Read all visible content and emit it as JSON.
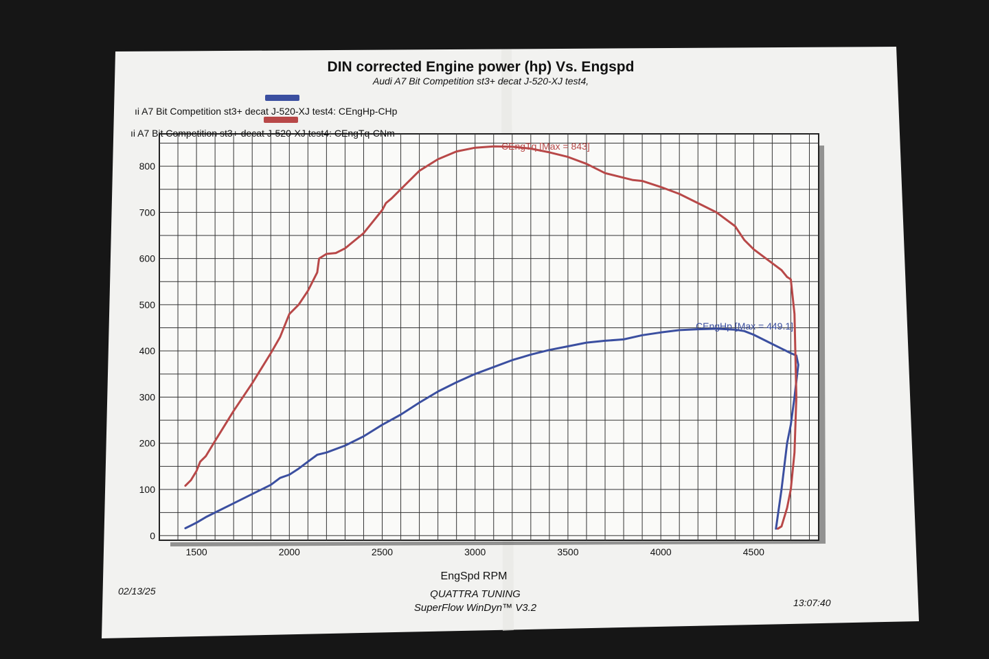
{
  "colors": {
    "hp": "#3b4fa0",
    "tq": "#b84848",
    "paper": "#f3f3f1",
    "background": "#161616"
  },
  "chart_data": {
    "type": "line",
    "title": "DIN corrected Engine power (hp) Vs. Engspd",
    "subtitle": "Audi A7 Bit Competition st3+ decat J-520-XJ test4,",
    "xlabel": "EngSpd RPM",
    "ylabel": "",
    "xlim": [
      1300,
      4850
    ],
    "ylim": [
      -10,
      870
    ],
    "x_ticks": [
      1500,
      2000,
      2500,
      3000,
      3500,
      4000,
      4500
    ],
    "y_ticks": [
      0,
      100,
      200,
      300,
      400,
      500,
      600,
      700,
      800
    ],
    "grid": true,
    "legend_position": "top-left",
    "series": [
      {
        "name": "ıi A7 Bit Competition st3+ decat J-520-XJ test4: CEngHp-CHp",
        "color_key": "hp",
        "annotation": "CEngHp [Max = 449.1]",
        "x": [
          1440,
          1470,
          1500,
          1550,
          1600,
          1700,
          1800,
          1900,
          1950,
          2000,
          2050,
          2100,
          2150,
          2200,
          2300,
          2400,
          2500,
          2600,
          2700,
          2800,
          2900,
          3000,
          3100,
          3200,
          3300,
          3400,
          3500,
          3600,
          3700,
          3800,
          3900,
          4000,
          4100,
          4200,
          4300,
          4400,
          4450,
          4500,
          4550,
          4600,
          4650,
          4700,
          4730,
          4740,
          4720,
          4700,
          4680,
          4650,
          4620
        ],
        "y": [
          16,
          22,
          28,
          40,
          50,
          70,
          90,
          110,
          125,
          132,
          145,
          160,
          175,
          180,
          195,
          215,
          240,
          262,
          288,
          312,
          332,
          350,
          365,
          380,
          392,
          402,
          410,
          418,
          422,
          425,
          434,
          440,
          445,
          447,
          448,
          446,
          443,
          435,
          425,
          415,
          405,
          395,
          390,
          370,
          300,
          240,
          200,
          100,
          15
        ]
      },
      {
        "name": "ıi A7 Bit Competition st3+ decat J-520-XJ test4: CEngTq-CNm",
        "color_key": "tq",
        "annotation": "CEngTq [Max = 843]",
        "x": [
          1440,
          1470,
          1500,
          1520,
          1550,
          1600,
          1700,
          1800,
          1900,
          1950,
          1980,
          2000,
          2050,
          2100,
          2150,
          2160,
          2200,
          2250,
          2300,
          2400,
          2450,
          2500,
          2520,
          2550,
          2600,
          2700,
          2800,
          2900,
          3000,
          3100,
          3200,
          3300,
          3400,
          3500,
          3600,
          3700,
          3800,
          3850,
          3900,
          4000,
          4100,
          4200,
          4300,
          4400,
          4450,
          4500,
          4550,
          4600,
          4650,
          4680,
          4700,
          4720,
          4730,
          4720,
          4700,
          4680,
          4650,
          4630
        ],
        "y": [
          108,
          120,
          140,
          160,
          172,
          205,
          270,
          330,
          395,
          430,
          460,
          480,
          500,
          530,
          570,
          600,
          610,
          612,
          622,
          655,
          680,
          705,
          720,
          730,
          750,
          790,
          815,
          832,
          840,
          843,
          842,
          838,
          830,
          820,
          805,
          785,
          775,
          770,
          768,
          755,
          740,
          720,
          700,
          670,
          640,
          620,
          605,
          590,
          575,
          560,
          555,
          480,
          300,
          180,
          100,
          60,
          20,
          15
        ]
      }
    ],
    "date": "02/13/25",
    "time": "13:07:40",
    "shop": "QUATTRA TUNING",
    "software": "SuperFlow WinDyn™ V3.2"
  }
}
